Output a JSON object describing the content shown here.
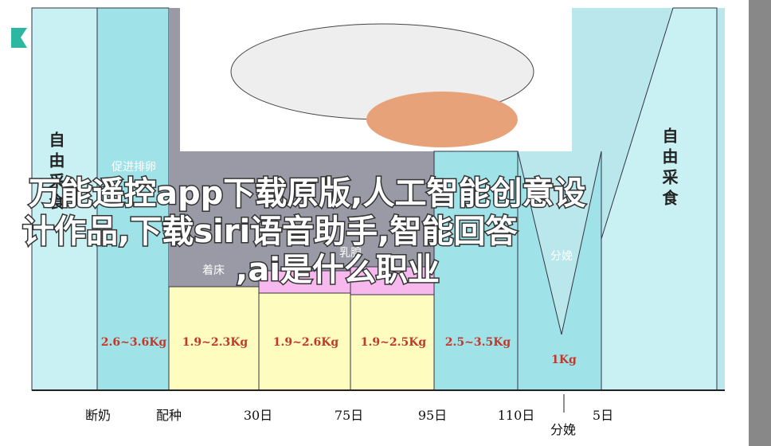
{
  "overlay_title": {
    "lines": [
      "万能遥控app下载原版,人工智能创意设",
      "计作品,下载siri语音助手,智能回答",
      ",ai是什么职业"
    ]
  },
  "diagram": {
    "side_labels": [
      "自由采食",
      "自由采食"
    ],
    "stage_labels": [
      "促进排卵",
      "着床",
      "乳腺",
      "分娩"
    ],
    "weights": [
      "2.6~3.6Kg",
      "1.9~2.3Kg",
      "1.9~2.6Kg",
      "1.9~2.5Kg",
      "2.5~3.5Kg",
      "1Kg"
    ],
    "timeline": [
      "断奶",
      "配种",
      "30日",
      "75日",
      "95日",
      "110日",
      "分娩",
      "5日"
    ]
  }
}
